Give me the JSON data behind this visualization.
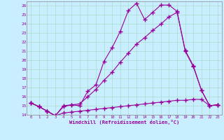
{
  "xlabel": "Windchill (Refroidissement éolien,°C)",
  "x": [
    0,
    1,
    2,
    3,
    4,
    5,
    6,
    7,
    8,
    9,
    10,
    11,
    12,
    13,
    14,
    15,
    16,
    17,
    18,
    19,
    20,
    21,
    22,
    23
  ],
  "line1": [
    15.3,
    14.9,
    14.4,
    13.9,
    14.9,
    15.1,
    15.0,
    16.6,
    17.3,
    19.9,
    21.4,
    23.2,
    25.5,
    26.3,
    24.5,
    25.3,
    26.1,
    26.1,
    25.4,
    21.0,
    19.3,
    16.7,
    15.0,
    15.1
  ],
  "line2": [
    15.3,
    14.9,
    14.4,
    13.9,
    15.0,
    15.1,
    15.2,
    16.0,
    16.8,
    17.8,
    18.7,
    19.8,
    20.8,
    21.8,
    22.5,
    23.3,
    24.0,
    24.8,
    25.3,
    21.1,
    19.4,
    16.7,
    15.0,
    15.1
  ],
  "line3": [
    15.3,
    14.9,
    14.4,
    13.9,
    14.2,
    14.3,
    14.4,
    14.5,
    14.6,
    14.7,
    14.8,
    14.9,
    15.0,
    15.1,
    15.2,
    15.3,
    15.4,
    15.5,
    15.6,
    15.6,
    15.7,
    15.7,
    15.0,
    15.1
  ],
  "line_color": "#990099",
  "bg_color": "#c8eeff",
  "grid_color": "#aaddcc",
  "ylim_min": 14.0,
  "ylim_max": 26.5,
  "yticks": [
    14,
    15,
    16,
    17,
    18,
    19,
    20,
    21,
    22,
    23,
    24,
    25,
    26
  ],
  "xticks": [
    0,
    1,
    2,
    3,
    4,
    5,
    6,
    7,
    8,
    9,
    10,
    11,
    12,
    13,
    14,
    15,
    16,
    17,
    18,
    19,
    20,
    21,
    22,
    23
  ],
  "marker": "+",
  "markersize": 4.0,
  "linewidth": 0.8
}
